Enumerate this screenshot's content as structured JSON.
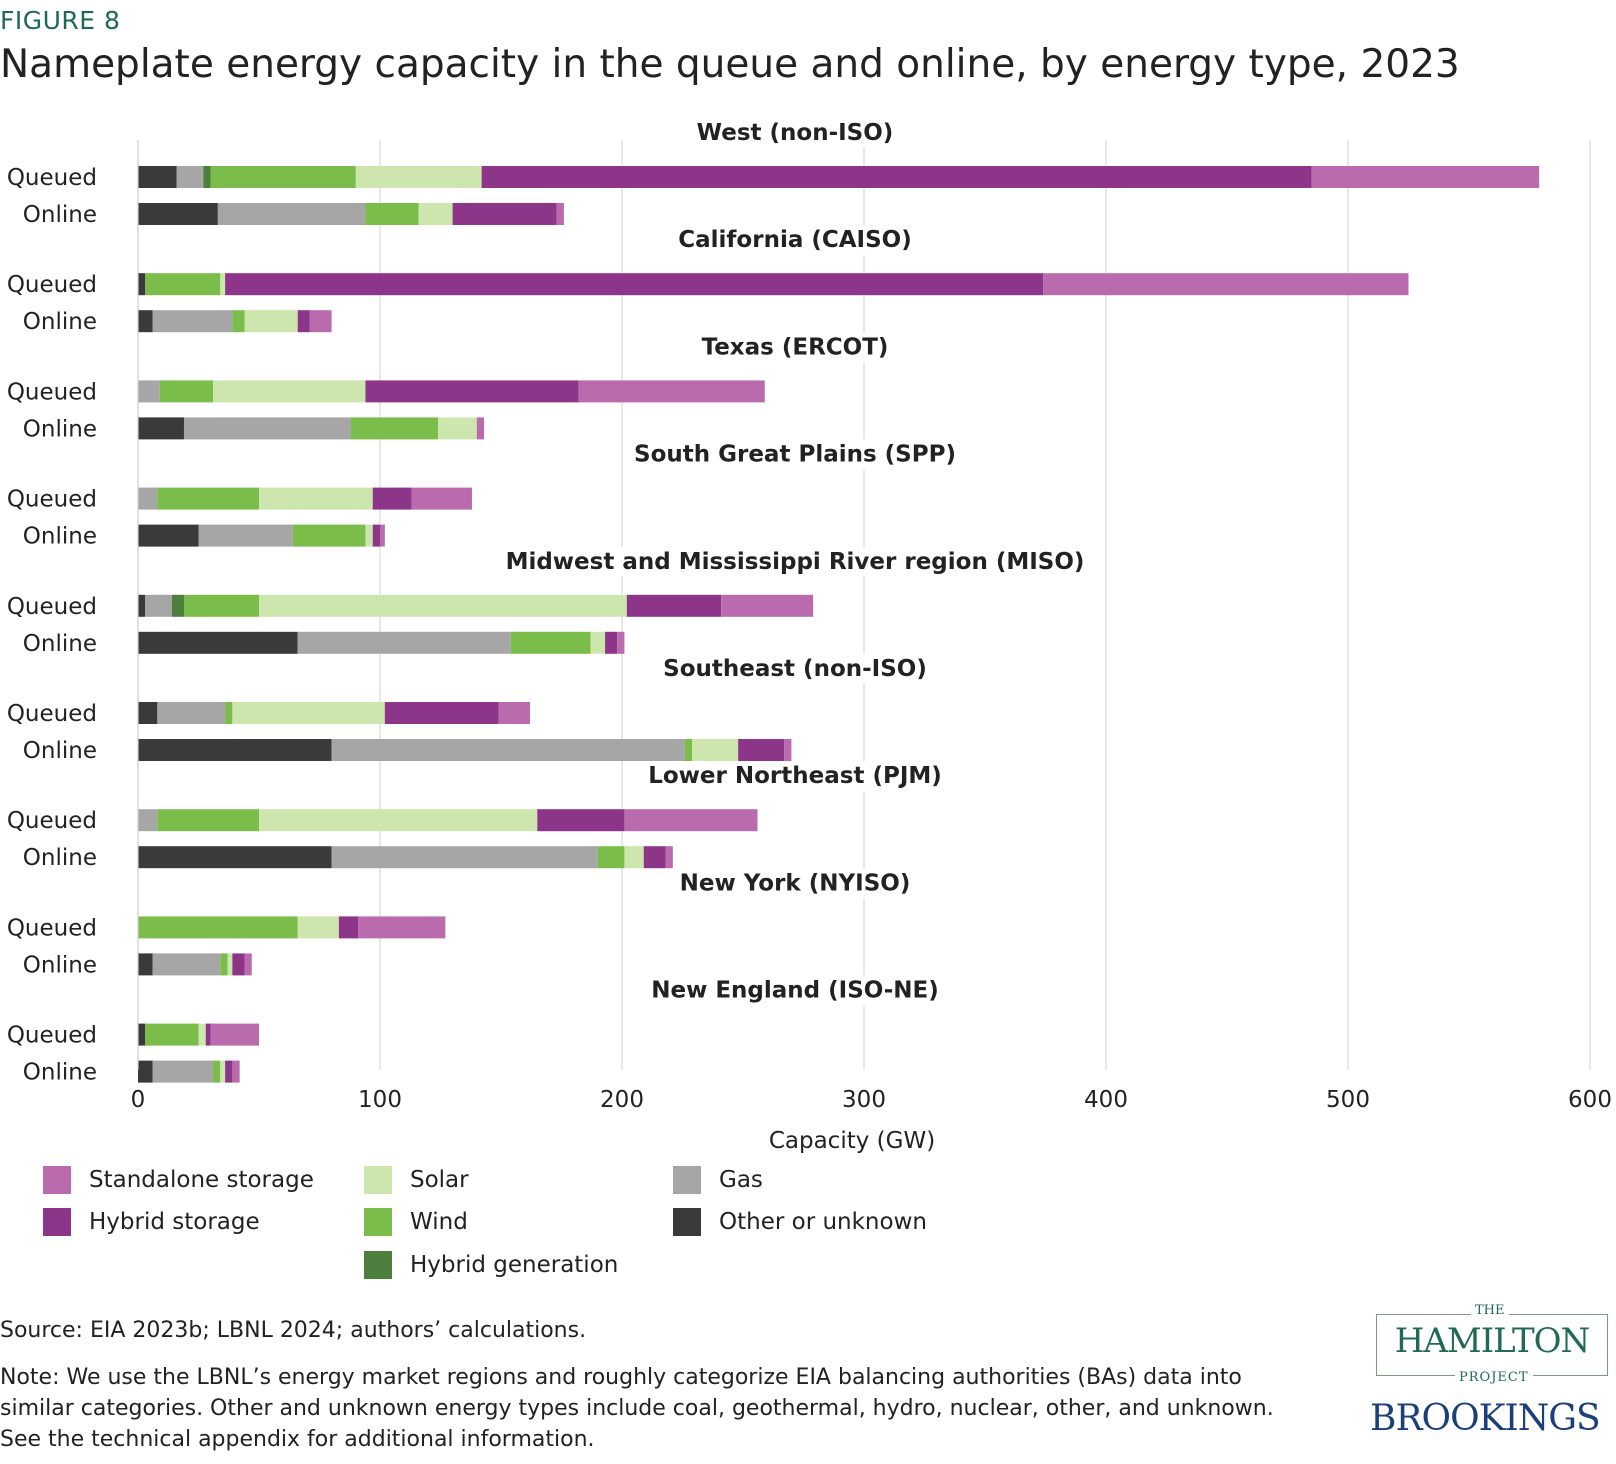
{
  "figure_label": "FIGURE 8",
  "title": "Nameplate energy capacity in the queue and online, by energy type, 2023",
  "chart_data": {
    "type": "bar",
    "orientation": "horizontal",
    "stacked": true,
    "xlabel": "Capacity (GW)",
    "xlim": [
      0,
      600
    ],
    "xticks": [
      0,
      100,
      200,
      300,
      400,
      500,
      600
    ],
    "grid": "vertical",
    "legend_position": "bottom",
    "series_order": [
      "Other or unknown",
      "Gas",
      "Hybrid generation",
      "Wind",
      "Solar",
      "Hybrid storage",
      "Standalone storage"
    ],
    "colors": {
      "Other or unknown": "#3a3a3a",
      "Gas": "#a6a6a6",
      "Hybrid generation": "#4e7e3c",
      "Wind": "#7bbd4a",
      "Solar": "#cde6ad",
      "Hybrid storage": "#8c3589",
      "Standalone storage": "#b96bae"
    },
    "regions": [
      {
        "name": "West (non-ISO)",
        "rows": [
          {
            "label": "Queued",
            "values": [
              16,
              11,
              3,
              60,
              52,
              343,
              94
            ]
          },
          {
            "label": "Online",
            "values": [
              33,
              61,
              0,
              22,
              14,
              43,
              3
            ]
          }
        ]
      },
      {
        "name": "California (CAISO)",
        "rows": [
          {
            "label": "Queued",
            "values": [
              3,
              0,
              0,
              31,
              2,
              338,
              151
            ]
          },
          {
            "label": "Online",
            "values": [
              6,
              33,
              0,
              5,
              22,
              5,
              9
            ]
          }
        ]
      },
      {
        "name": "Texas (ERCOT)",
        "rows": [
          {
            "label": "Queued",
            "values": [
              0,
              9,
              0,
              22,
              63,
              88,
              77
            ]
          },
          {
            "label": "Online",
            "values": [
              19,
              69,
              0,
              36,
              16,
              0,
              3
            ]
          }
        ]
      },
      {
        "name": "South Great Plains (SPP)",
        "rows": [
          {
            "label": "Queued",
            "values": [
              0,
              8,
              0,
              42,
              47,
              16,
              25
            ]
          },
          {
            "label": "Online",
            "values": [
              25,
              39,
              0,
              30,
              3,
              3,
              2
            ]
          }
        ]
      },
      {
        "name": "Midwest and Mississippi River region (MISO)",
        "rows": [
          {
            "label": "Queued",
            "values": [
              3,
              11,
              5,
              31,
              152,
              39,
              38
            ]
          },
          {
            "label": "Online",
            "values": [
              66,
              88,
              0,
              33,
              6,
              5,
              3
            ]
          }
        ]
      },
      {
        "name": "Southeast (non-ISO)",
        "rows": [
          {
            "label": "Queued",
            "values": [
              8,
              28,
              0,
              3,
              63,
              47,
              13
            ]
          },
          {
            "label": "Online",
            "values": [
              80,
              146,
              0,
              3,
              19,
              19,
              3
            ]
          }
        ]
      },
      {
        "name": "Lower Northeast (PJM)",
        "rows": [
          {
            "label": "Queued",
            "values": [
              0,
              8,
              0,
              42,
              115,
              36,
              55
            ]
          },
          {
            "label": "Online",
            "values": [
              80,
              110,
              0,
              11,
              8,
              9,
              3
            ]
          }
        ]
      },
      {
        "name": "New York (NYISO)",
        "rows": [
          {
            "label": "Queued",
            "values": [
              0,
              0,
              0,
              66,
              17,
              8,
              36
            ]
          },
          {
            "label": "Online",
            "values": [
              6,
              28,
              0,
              3,
              2,
              5,
              3
            ]
          }
        ]
      },
      {
        "name": "New England (ISO-NE)",
        "rows": [
          {
            "label": "Queued",
            "values": [
              3,
              0,
              0,
              22,
              3,
              2,
              20
            ]
          },
          {
            "label": "Online",
            "values": [
              6,
              25,
              0,
              3,
              2,
              3,
              3
            ]
          }
        ]
      }
    ]
  },
  "legend": [
    {
      "label": "Standalone storage",
      "color": "#b96bae"
    },
    {
      "label": "Hybrid storage",
      "color": "#8c3589"
    },
    {
      "label": "Solar",
      "color": "#cde6ad"
    },
    {
      "label": "Wind",
      "color": "#7bbd4a"
    },
    {
      "label": "Hybrid generation",
      "color": "#4e7e3c"
    },
    {
      "label": "Gas",
      "color": "#a6a6a6"
    },
    {
      "label": "Other or unknown",
      "color": "#3a3a3a"
    }
  ],
  "source": "Source: EIA 2023b; LBNL 2024; authors’ calculations.",
  "note": "Note: We use the LBNL’s energy market regions and roughly categorize EIA balancing authorities (BAs) data into similar categories. Other and unknown energy types include coal, geothermal, hydro, nuclear, other, and unknown. See the technical appendix for additional information.",
  "logos": {
    "hamilton_the": "THE",
    "hamilton_name": "HAMILTON",
    "hamilton_project": "PROJECT",
    "brookings": "BROOKINGS"
  }
}
